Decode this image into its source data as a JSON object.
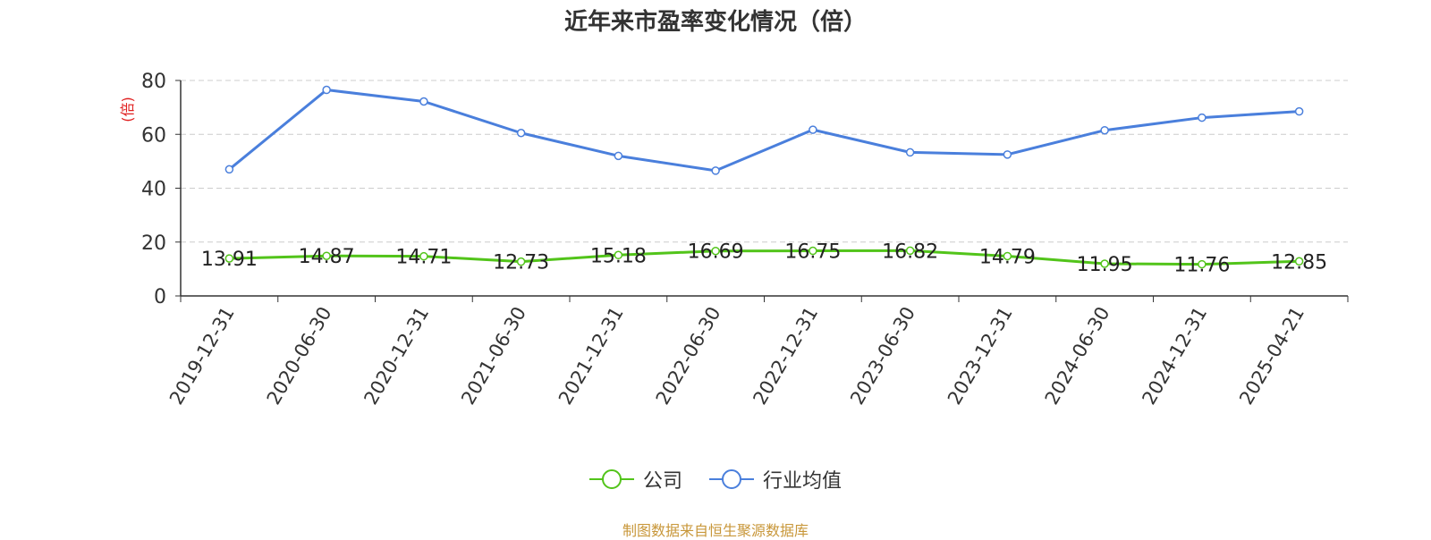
{
  "title": "近年来市盈率变化情况（倍）",
  "source": "制图数据来自恒生聚源数据库",
  "colors": {
    "company": "#52c41a",
    "industry": "#4a7fdc",
    "unit": "#e02020",
    "axis": "#333333",
    "grid": "#cccccc"
  },
  "chart_data": {
    "type": "line",
    "title": "近年来市盈率变化情况（倍）",
    "ylabel": "(倍)",
    "ylim": [
      0,
      80
    ],
    "yticks": [
      0,
      20,
      40,
      60,
      80
    ],
    "grid": true,
    "legend_position": "bottom",
    "categories": [
      "2019-12-31",
      "2020-06-30",
      "2020-12-31",
      "2021-06-30",
      "2021-12-31",
      "2022-06-30",
      "2022-12-31",
      "2023-06-30",
      "2023-12-31",
      "2024-06-30",
      "2024-12-31",
      "2025-04-21"
    ],
    "series": [
      {
        "name": "公司",
        "key": "company",
        "values": [
          13.91,
          14.87,
          14.71,
          12.73,
          15.18,
          16.69,
          16.75,
          16.82,
          14.79,
          11.95,
          11.76,
          12.85
        ],
        "labels": [
          "13.91",
          "14.87",
          "14.71",
          "12.73",
          "15.18",
          "16.69",
          "16.75",
          "16.82",
          "14.79",
          "11.95",
          "11.76",
          "12.85"
        ]
      },
      {
        "name": "行业均值",
        "key": "industry",
        "values": [
          47,
          76.5,
          72.2,
          60.5,
          52,
          46.5,
          61.7,
          53.3,
          52.5,
          61.5,
          66.2,
          68.5
        ]
      }
    ]
  }
}
